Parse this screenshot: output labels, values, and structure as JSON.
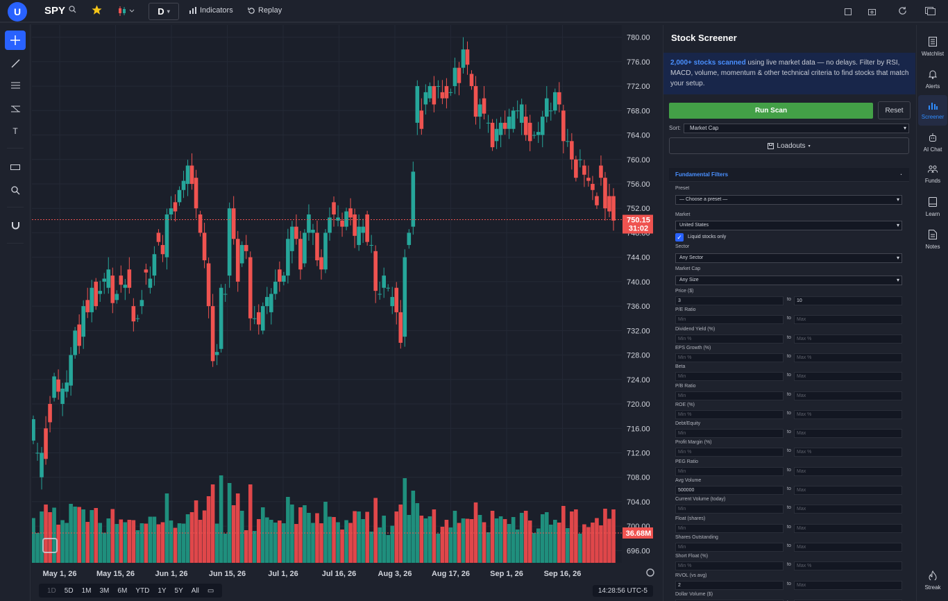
{
  "header": {
    "avatar_letter": "U",
    "symbol": "SPY",
    "timeframe": "D",
    "indicators_label": "Indicators",
    "replay_label": "Replay"
  },
  "chart": {
    "last_price_label": "750.15",
    "countdown_label": "31:02",
    "volume_label": "36.68M",
    "up_color": "#26a69a",
    "down_color": "#ef5350"
  },
  "chart_data": {
    "type": "candlestick",
    "ylim": [
      694,
      782
    ],
    "y_ticks": [
      "780.00",
      "776.00",
      "772.00",
      "768.00",
      "764.00",
      "760.00",
      "756.00",
      "752.00",
      "748.00",
      "744.00",
      "740.00",
      "736.00",
      "732.00",
      "728.00",
      "724.00",
      "720.00",
      "716.00",
      "712.00",
      "708.00",
      "704.00",
      "700.00",
      "696.00"
    ],
    "x_ticks": [
      "May 1, 26",
      "May 15, 26",
      "Jun 1, 26",
      "Jun 15, 26",
      "Jul 1, 26",
      "Jul 16, 26",
      "Aug 3, 26",
      "Aug 17, 26",
      "Sep 1, 26",
      "Sep 16, 26"
    ],
    "last_price": 750.15,
    "candles": [
      [
        714,
        717.5
      ],
      [
        712,
        712
      ],
      [
        708,
        712
      ],
      [
        716,
        711
      ],
      [
        720,
        717
      ],
      [
        721,
        724.5
      ],
      [
        724,
        722
      ],
      [
        720,
        722.5
      ],
      [
        722,
        723.5
      ],
      [
        723,
        728
      ],
      [
        728,
        732
      ],
      [
        733,
        729.5
      ],
      [
        731,
        736
      ],
      [
        737,
        735
      ],
      [
        735,
        739
      ],
      [
        740,
        736
      ],
      [
        738,
        738.5
      ],
      [
        740,
        740.5
      ],
      [
        739,
        742
      ],
      [
        741,
        736.5
      ],
      [
        737,
        738
      ],
      [
        741,
        739.5
      ],
      [
        739,
        739.5
      ],
      [
        742,
        739
      ],
      [
        736,
        733.5
      ],
      [
        734,
        734
      ],
      [
        736,
        737
      ],
      [
        742,
        741.5
      ],
      [
        739,
        740.5
      ],
      [
        741,
        744.5
      ],
      [
        748,
        746.5
      ],
      [
        746,
        744.5
      ],
      [
        744,
        751
      ],
      [
        751,
        752
      ],
      [
        753,
        751.5
      ],
      [
        753,
        755
      ],
      [
        755,
        756.5
      ],
      [
        756,
        759
      ],
      [
        759,
        756
      ],
      [
        757,
        752
      ],
      [
        751,
        748
      ],
      [
        748,
        743.5
      ],
      [
        743,
        736
      ],
      [
        736,
        727
      ],
      [
        728,
        728.5
      ],
      [
        729,
        739
      ],
      [
        738,
        738
      ],
      [
        741,
        752
      ],
      [
        752,
        747
      ],
      [
        747,
        740
      ],
      [
        743,
        746
      ],
      [
        746,
        745
      ],
      [
        744,
        734
      ],
      [
        734,
        734
      ],
      [
        735,
        733
      ],
      [
        732,
        736
      ],
      [
        736,
        737.5
      ],
      [
        735,
        738
      ],
      [
        738,
        740
      ],
      [
        742,
        740
      ],
      [
        740,
        741
      ],
      [
        741,
        747
      ],
      [
        745,
        749
      ],
      [
        749,
        747
      ],
      [
        747,
        742
      ],
      [
        743,
        748
      ],
      [
        748,
        751
      ],
      [
        748,
        748.5
      ],
      [
        748,
        743.5
      ],
      [
        744,
        742
      ],
      [
        742,
        748
      ],
      [
        748,
        750.5
      ],
      [
        753,
        751
      ],
      [
        750,
        750.5
      ],
      [
        750,
        749
      ],
      [
        749,
        751.5
      ],
      [
        752,
        750.5
      ],
      [
        751,
        747.5
      ],
      [
        746,
        749
      ],
      [
        748,
        749
      ],
      [
        751,
        746.5
      ],
      [
        746,
        746
      ],
      [
        745,
        738.5
      ],
      [
        738,
        738
      ],
      [
        739,
        741
      ],
      [
        739,
        739
      ],
      [
        736,
        737.5
      ],
      [
        739,
        735
      ],
      [
        735,
        730
      ],
      [
        731,
        744
      ],
      [
        746,
        748
      ],
      [
        749,
        758
      ],
      [
        766,
        772
      ],
      [
        768,
        765
      ],
      [
        769,
        771
      ],
      [
        770,
        772
      ],
      [
        772,
        769
      ],
      [
        772,
        772
      ],
      [
        771,
        770
      ],
      [
        772,
        770
      ],
      [
        771,
        771
      ],
      [
        772,
        775
      ],
      [
        775,
        772.5
      ],
      [
        775,
        778
      ],
      [
        778,
        775.5
      ],
      [
        774,
        772
      ],
      [
        772,
        767
      ],
      [
        767,
        769
      ],
      [
        770,
        767.5
      ],
      [
        766,
        766
      ],
      [
        766,
        762
      ],
      [
        763,
        765
      ],
      [
        764,
        766
      ],
      [
        766,
        765
      ],
      [
        765,
        767
      ],
      [
        765,
        768
      ],
      [
        768,
        768
      ],
      [
        766,
        769
      ],
      [
        767,
        764
      ],
      [
        766,
        763
      ],
      [
        764,
        764
      ],
      [
        764,
        764.5
      ],
      [
        764,
        767
      ],
      [
        767,
        770
      ],
      [
        768,
        768
      ],
      [
        768,
        771
      ],
      [
        771,
        769
      ],
      [
        768,
        763
      ],
      [
        763,
        763
      ],
      [
        763,
        760
      ],
      [
        760,
        757
      ],
      [
        760,
        760
      ],
      [
        759,
        757.5
      ],
      [
        757,
        756.5
      ],
      [
        756,
        755
      ],
      [
        754,
        752.5
      ],
      [
        759,
        757
      ],
      [
        757,
        752
      ],
      [
        754,
        751.5
      ],
      [
        754,
        750
      ]
    ],
    "volume_note": "volume bars shown at bottom, last value 36.68M"
  },
  "timeframes": [
    "1D",
    "5D",
    "1M",
    "3M",
    "6M",
    "YTD",
    "1Y",
    "5Y",
    "All"
  ],
  "clock": "14:28:56 UTC-5",
  "screener": {
    "title": "Stock Screener",
    "desc_bold": "2,000+ stocks scanned",
    "desc_rest": " using live market data — no delays. Filter by RSI, MACD, volume, momentum & other technical criteria to find stocks that match your setup.",
    "run_label": "Run Scan",
    "reset_label": "Reset",
    "sort_label": "Sort:",
    "sort_value": "Market Cap",
    "loadouts_label": "Loadouts",
    "section_title": "Fundamental Filters",
    "preset_label": "Preset",
    "preset_value": "— Choose a preset —",
    "market_label": "Market",
    "market_value": "United States",
    "liquid_label": "Liquid stocks only",
    "sector_label": "Sector",
    "sector_value": "Any Sector",
    "mcap_label": "Market Cap",
    "mcap_value": "Any Size",
    "to_label": "to",
    "ranges": [
      {
        "label": "Price ($)",
        "min": "3",
        "max": "10",
        "min_set": true,
        "max_set": true
      },
      {
        "label": "P/E Ratio",
        "min": "Min",
        "max": "Max"
      },
      {
        "label": "Dividend Yield (%)",
        "min": "Min %",
        "max": "Max %"
      },
      {
        "label": "EPS Growth (%)",
        "min": "Min %",
        "max": "Max %"
      },
      {
        "label": "Beta",
        "min": "Min",
        "max": "Max"
      },
      {
        "label": "P/B Ratio",
        "min": "Min",
        "max": "Max"
      },
      {
        "label": "ROE (%)",
        "min": "Min %",
        "max": "Max %"
      },
      {
        "label": "Debt/Equity",
        "min": "Min",
        "max": "Max"
      },
      {
        "label": "Profit Margin (%)",
        "min": "Min %",
        "max": "Max %"
      },
      {
        "label": "PEG Ratio",
        "min": "Min",
        "max": "Max"
      },
      {
        "label": "Avg Volume",
        "min": "500000",
        "max": "Max",
        "min_set": true
      },
      {
        "label": "Current Volume (today)",
        "min": "Min",
        "max": "Max"
      },
      {
        "label": "Float (shares)",
        "min": "Min",
        "max": "Max"
      },
      {
        "label": "Shares Outstanding",
        "min": "Min",
        "max": "Max"
      },
      {
        "label": "Short Float (%)",
        "min": "Min %",
        "max": "Max %"
      },
      {
        "label": "RVOL (vs avg)",
        "min": "2",
        "max": "Max",
        "min_set": true
      },
      {
        "label": "Dollar Volume ($)",
        "min": "",
        "max": ""
      }
    ]
  },
  "rightbar": [
    "Watchlist",
    "Alerts",
    "Screener",
    "AI Chat",
    "Funds",
    "Learn",
    "Notes",
    "Streak"
  ]
}
